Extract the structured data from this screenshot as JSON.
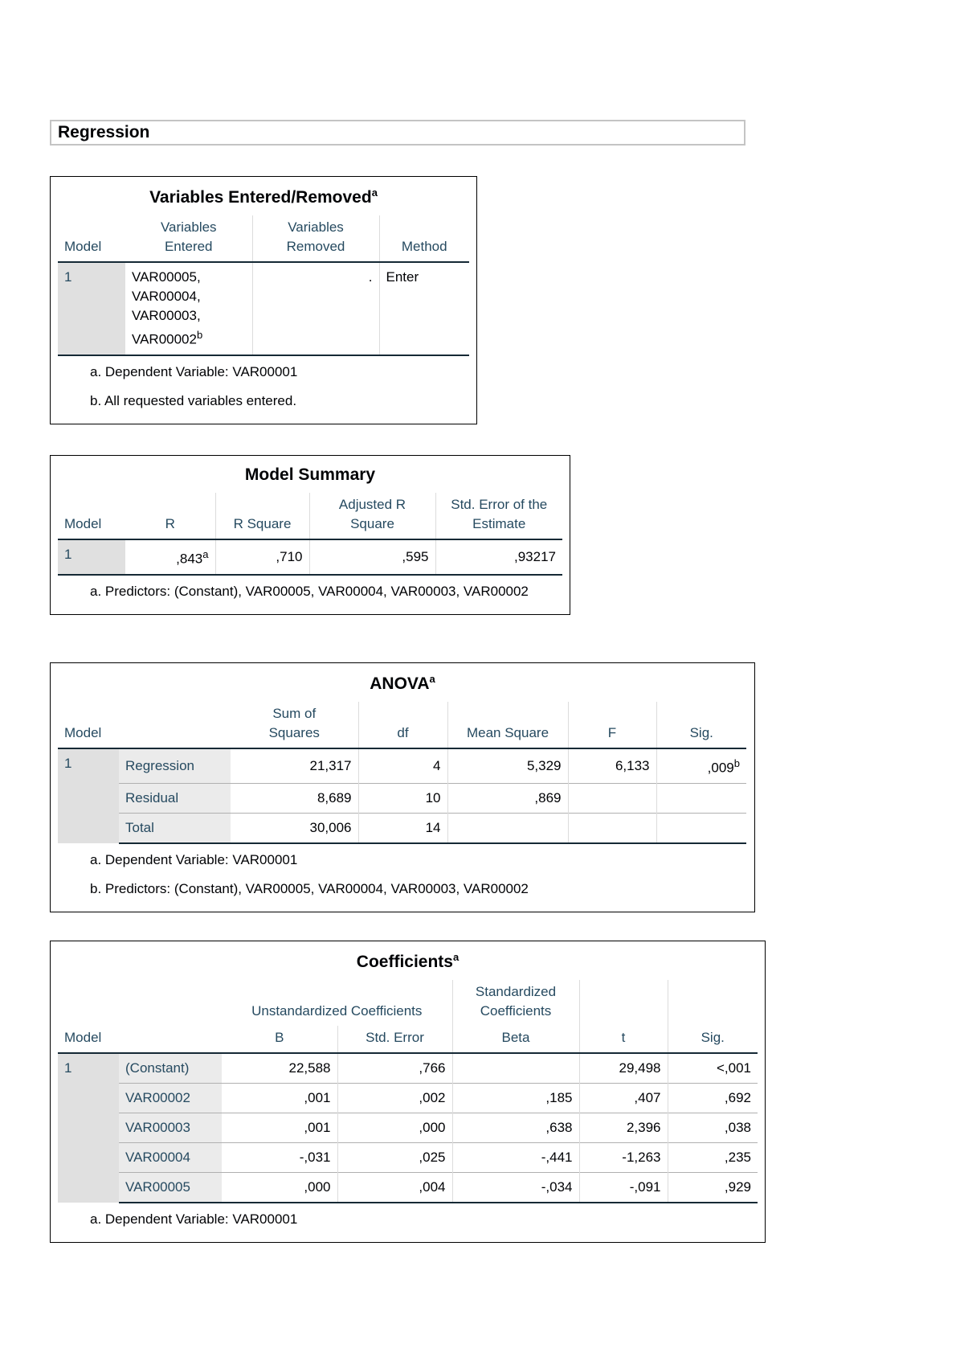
{
  "header": {
    "title": "Regression"
  },
  "variables_entered": {
    "title": "Variables Entered/Removed",
    "title_note": "a",
    "columns": [
      "Model",
      "Variables Entered",
      "Variables Removed",
      "Method"
    ],
    "rows": [
      {
        "model": "1",
        "entered": [
          "VAR00005,",
          "VAR00004,",
          "VAR00003,",
          "VAR00002"
        ],
        "entered_note": "b",
        "removed": ".",
        "method": "Enter"
      }
    ],
    "footnotes": [
      "a. Dependent Variable: VAR00001",
      "b. All requested variables entered."
    ]
  },
  "model_summary": {
    "title": "Model Summary",
    "columns": [
      "Model",
      "R",
      "R Square",
      "Adjusted R Square",
      "Std. Error of the Estimate"
    ],
    "rows": [
      {
        "model": "1",
        "r": ",843",
        "r_note": "a",
        "r_square": ",710",
        "adjusted_r_square": ",595",
        "std_error": ",93217"
      }
    ],
    "footnotes": [
      "a. Predictors: (Constant), VAR00005, VAR00004, VAR00003, VAR00002"
    ]
  },
  "anova": {
    "title": "ANOVA",
    "title_note": "a",
    "columns": [
      "Model",
      "Sum of Squares",
      "df",
      "Mean Square",
      "F",
      "Sig."
    ],
    "model": "1",
    "rows": [
      {
        "label": "Regression",
        "sum_of_squares": "21,317",
        "df": "4",
        "mean_square": "5,329",
        "f": "6,133",
        "sig": ",009",
        "sig_note": "b"
      },
      {
        "label": "Residual",
        "sum_of_squares": "8,689",
        "df": "10",
        "mean_square": ",869"
      },
      {
        "label": "Total",
        "sum_of_squares": "30,006",
        "df": "14"
      }
    ],
    "footnotes": [
      "a. Dependent Variable: VAR00001",
      "b. Predictors: (Constant), VAR00005, VAR00004, VAR00003, VAR00002"
    ]
  },
  "coefficients": {
    "title": "Coefficients",
    "title_note": "a",
    "group_headers": [
      "Unstandardized Coefficients",
      "Standardized Coefficients"
    ],
    "columns": [
      "Model",
      "B",
      "Std. Error",
      "Beta",
      "t",
      "Sig."
    ],
    "model": "1",
    "rows": [
      {
        "label": "(Constant)",
        "b": "22,588",
        "std_error": ",766",
        "t": "29,498",
        "sig": "<,001"
      },
      {
        "label": "VAR00002",
        "b": ",001",
        "std_error": ",002",
        "beta": ",185",
        "t": ",407",
        "sig": ",692"
      },
      {
        "label": "VAR00003",
        "b": ",001",
        "std_error": ",000",
        "beta": ",638",
        "t": "2,396",
        "sig": ",038"
      },
      {
        "label": "VAR00004",
        "b": "-,031",
        "std_error": ",025",
        "beta": "-,441",
        "t": "-1,263",
        "sig": ",235"
      },
      {
        "label": "VAR00005",
        "b": ",000",
        "std_error": ",004",
        "beta": "-,034",
        "t": "-,091",
        "sig": ",929"
      }
    ],
    "footnotes": [
      "a. Dependent Variable: VAR00001"
    ]
  }
}
